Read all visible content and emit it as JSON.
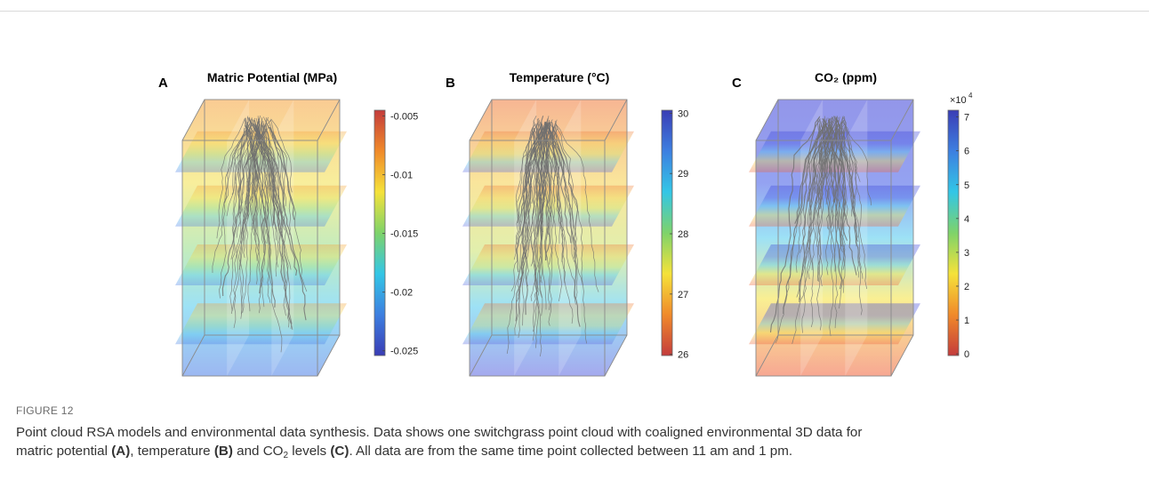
{
  "figure": {
    "panels": [
      {
        "label": "A",
        "title": "Matric Potential (MPa)",
        "colorbar": {
          "lim": [
            -0.0254,
            -0.0045
          ],
          "ticks": [
            -0.005,
            -0.01,
            -0.015,
            -0.02,
            -0.025
          ],
          "colors": [
            "#c43c3c",
            "#f08a2a",
            "#f5e23a",
            "#7ed36a",
            "#33c6e6",
            "#3d7fe0",
            "#3a3db5"
          ]
        }
      },
      {
        "label": "B",
        "title": "Temperature (°C)",
        "colorbar": {
          "lim": [
            25.98,
            30.05
          ],
          "ticks": [
            30,
            29,
            28,
            27,
            26
          ],
          "colors": [
            "#3a3db5",
            "#3d7fe0",
            "#33c6e6",
            "#7ed36a",
            "#f5e23a",
            "#f08a2a",
            "#c43c3c"
          ]
        }
      },
      {
        "label": "C",
        "title": "CO₂ (ppm)",
        "colorbar": {
          "lim": [
            -0.05,
            7.2
          ],
          "ticks": [
            7,
            6,
            5,
            4,
            3,
            2,
            1,
            0
          ],
          "multiplier": {
            "base": "×10",
            "exponent": "4"
          },
          "colors": [
            "#3a3db5",
            "#3d7fe0",
            "#33c6e6",
            "#7ed36a",
            "#f5e23a",
            "#f08a2a",
            "#c43c3c"
          ]
        }
      }
    ],
    "label": "FIGURE 12",
    "caption": [
      "Point cloud RSA models and environmental data synthesis. Data shows one switchgrass point cloud with coaligned environmental 3D data for",
      "matric potential ",
      "(A)",
      ", temperature ",
      "(B)",
      " and CO",
      "2",
      " levels ",
      "(C)",
      ". All data are from the same time point collected between 11 am and 1 pm."
    ]
  }
}
